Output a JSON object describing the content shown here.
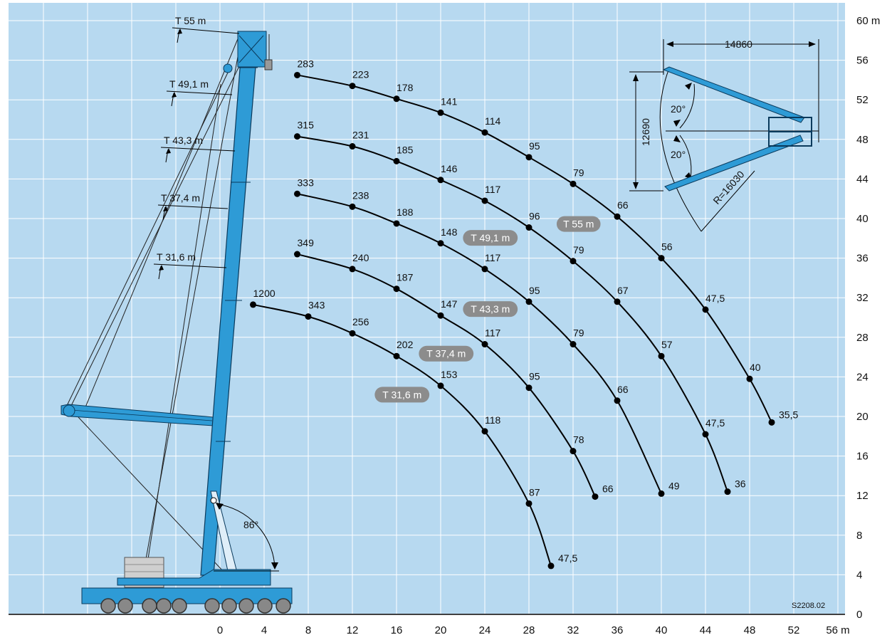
{
  "chart_data": {
    "type": "line",
    "x_ticks": [
      0,
      4,
      8,
      12,
      16,
      20,
      24,
      28,
      32,
      36,
      40,
      44,
      48,
      52,
      56
    ],
    "x_unit": "m",
    "y_ticks": [
      0,
      4,
      8,
      12,
      16,
      20,
      24,
      28,
      32,
      36,
      40,
      44,
      48,
      52,
      56,
      60
    ],
    "y_unit": "m",
    "xlim": [
      -19,
      56
    ],
    "ylim": [
      0,
      61
    ],
    "grid": true,
    "code": "S2208.02",
    "series": [
      {
        "name": "T 55 m",
        "points": [
          [
            7,
            54.5
          ],
          [
            12,
            53.4
          ],
          [
            16,
            52.1
          ],
          [
            20,
            50.7
          ],
          [
            24,
            48.7
          ],
          [
            28,
            46.2
          ],
          [
            32,
            43.5
          ],
          [
            36,
            40.2
          ],
          [
            40,
            36
          ],
          [
            44,
            30.8
          ],
          [
            48,
            23.8
          ],
          [
            50,
            19.4
          ]
        ],
        "labels": [
          "283",
          "223",
          "178",
          "141",
          "114",
          "95",
          "79",
          "66",
          "56",
          "47,5",
          "40",
          "35,5"
        ]
      },
      {
        "name": "T 49,1 m",
        "points": [
          [
            7,
            48.3
          ],
          [
            12,
            47.3
          ],
          [
            16,
            45.8
          ],
          [
            20,
            43.9
          ],
          [
            24,
            41.8
          ],
          [
            28,
            39.1
          ],
          [
            32,
            35.7
          ],
          [
            36,
            31.6
          ],
          [
            40,
            26.1
          ],
          [
            44,
            18.2
          ],
          [
            46,
            12.4
          ]
        ],
        "labels": [
          "315",
          "231",
          "185",
          "146",
          "117",
          "96",
          "79",
          "67",
          "57",
          "47,5",
          "36"
        ]
      },
      {
        "name": "T 43,3 m",
        "points": [
          [
            7,
            42.5
          ],
          [
            12,
            41.2
          ],
          [
            16,
            39.5
          ],
          [
            20,
            37.5
          ],
          [
            24,
            34.9
          ],
          [
            28,
            31.6
          ],
          [
            32,
            27.3
          ],
          [
            36,
            21.6
          ],
          [
            40,
            12.2
          ]
        ],
        "labels": [
          "333",
          "238",
          "188",
          "148",
          "117",
          "95",
          "79",
          "66",
          "49"
        ]
      },
      {
        "name": "T 37,4 m",
        "points": [
          [
            7,
            36.4
          ],
          [
            12,
            34.9
          ],
          [
            16,
            32.9
          ],
          [
            20,
            30.2
          ],
          [
            24,
            27.3
          ],
          [
            28,
            22.9
          ],
          [
            32,
            16.5
          ],
          [
            34,
            11.9
          ]
        ],
        "labels": [
          "349",
          "240",
          "187",
          "147",
          "117",
          "95",
          "78",
          "66"
        ]
      },
      {
        "name": "T 31,6 m",
        "points": [
          [
            3,
            31.3
          ],
          [
            8,
            30.1
          ],
          [
            12,
            28.4
          ],
          [
            16,
            26.1
          ],
          [
            20,
            23.1
          ],
          [
            24,
            18.5
          ],
          [
            28,
            11.2
          ],
          [
            30,
            4.9
          ]
        ],
        "labels": [
          "1200",
          "343",
          "256",
          "202",
          "153",
          "118",
          "87",
          "47,5"
        ]
      }
    ],
    "mast_labels": [
      "T 55 m",
      "T 49,1 m",
      "T 43,3 m",
      "T 37,4 m",
      "T 31,6 m"
    ],
    "annotations": {
      "angle": "86°",
      "superlift": {
        "width": "14860",
        "height": "12690",
        "radius": "R=16030",
        "angle_top": "20°",
        "angle_bottom": "20°"
      }
    },
    "colors": {
      "background": "#b7d9f0",
      "grid": "#ffffff",
      "crane": "#2e9bd6",
      "pill": "#8c8c8c",
      "curve": "#000000"
    }
  }
}
